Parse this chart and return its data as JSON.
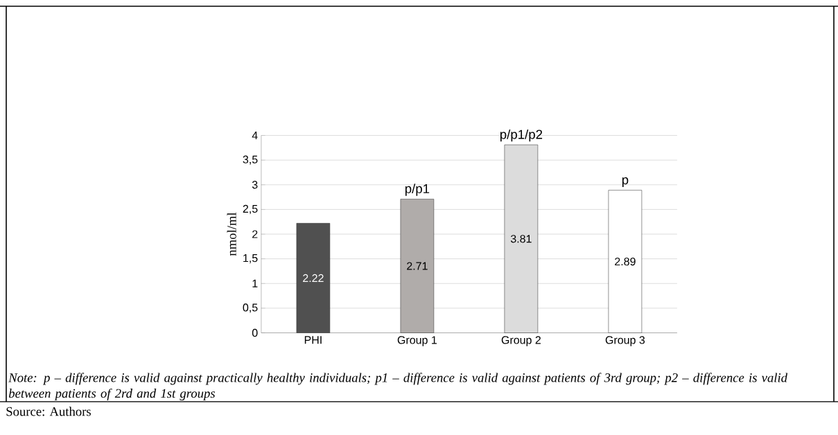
{
  "chart_data": {
    "type": "bar",
    "categories": [
      "PHI",
      "Group 1",
      "Group 2",
      "Group 3"
    ],
    "values": [
      2.22,
      2.71,
      3.81,
      2.89
    ],
    "colors": [
      "#505050",
      "#b0acaa",
      "#dcdcdc",
      "#ffffff"
    ],
    "ylabel": "nmol/ml",
    "ylim": [
      0,
      4
    ],
    "yticks": [
      0,
      {
        "value": 0.5,
        "label": "0,5"
      },
      1,
      {
        "value": 1.5,
        "label": "1,5"
      },
      2,
      {
        "value": 2.5,
        "label": "2,5"
      },
      3,
      {
        "value": 3.5,
        "label": "3,5"
      },
      4
    ],
    "grid": "y",
    "data_labels": true,
    "annotations": [
      {
        "text": "p/p1",
        "x": "Group 1",
        "y": 2.71
      },
      {
        "text": "p/p1/p2",
        "x": "Group 2",
        "y": 3.81
      },
      {
        "text": "p",
        "x": "Group 3",
        "y": 2.89
      },
      "Note: p – difference is valid against practically healthy individuals; p1 – difference is valid against patients of 3rd group; p2 – difference is valid between patients of 2rd and 1st groups",
      "Source: Authors"
    ]
  }
}
